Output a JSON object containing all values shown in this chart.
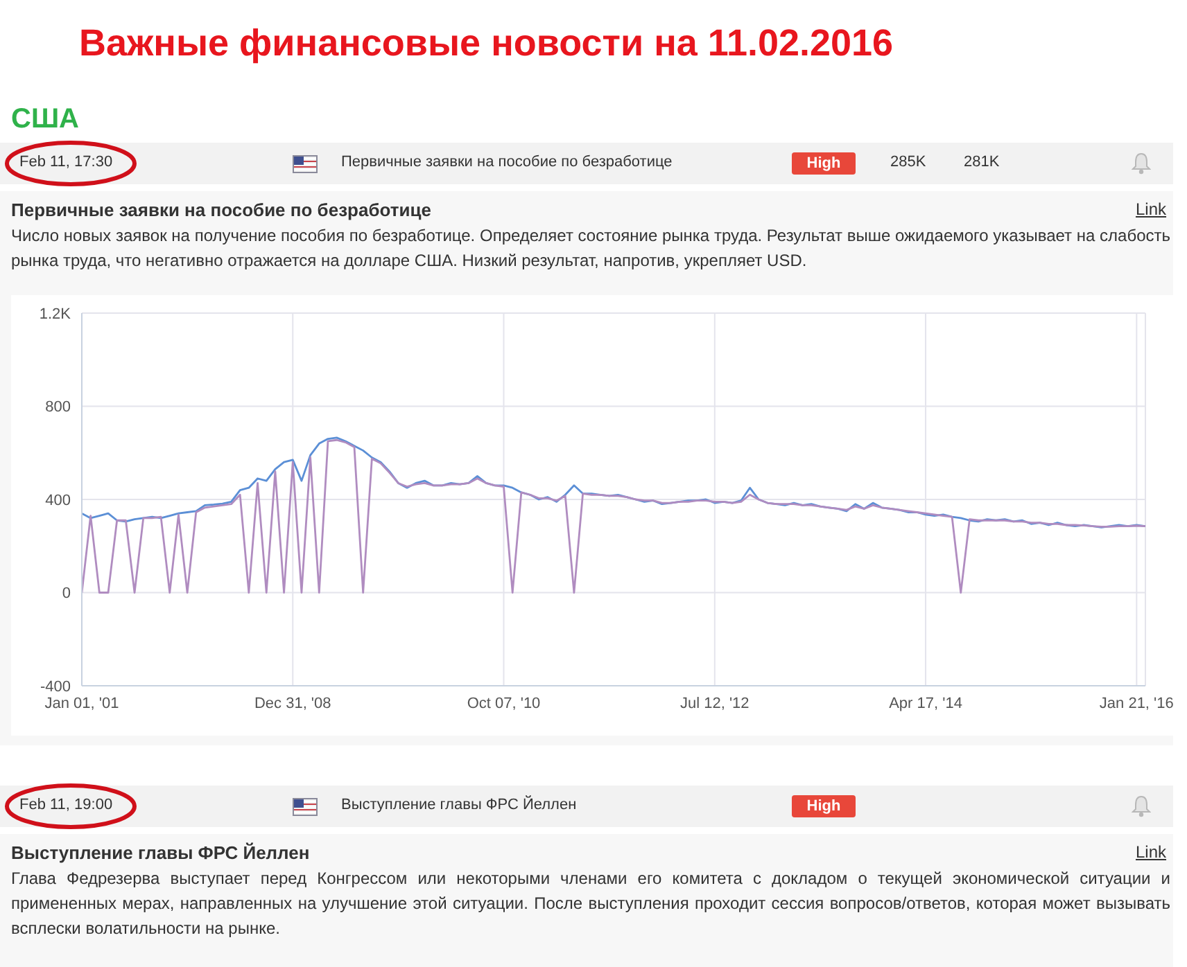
{
  "chart_data": {
    "type": "line",
    "title": "Важные финансовые новости на 11.02.2016",
    "annotations": [
      "США",
      "Feb 11, 17:30",
      "Первичные заявки на пособие по безработице",
      "High",
      "285K",
      "281K",
      "Первичные заявки на пособие по безработице",
      "Link",
      "Число новых заявок на получение пособия по безработице. Определяет состояние рынка труда. Результат выше ожидаемого указывает на слабость рынка труда, что негативно отражается на долларе США. Низкий результат, напротив, укрепляет USD.",
      "Feb 11, 19:00",
      "Выступление главы ФРС Йеллен",
      "High",
      "Выступление главы ФРС Йеллен",
      "Link",
      "Глава Федрезерва выступает перед Конгрессом или некоторыми членами его комитета с докладом о текущей экономической ситуации и примененных мерах, направленных на улучшение этой ситуации. После выступления проходит сессия вопросов/ответов, которая может вызывать всплески волатильности на рынке."
    ],
    "categories": [
      "Jan 01, '01",
      null,
      null,
      null,
      null,
      null,
      null,
      null,
      null,
      null,
      null,
      null,
      null,
      null,
      null,
      null,
      null,
      null,
      null,
      null,
      null,
      null,
      null,
      null,
      "Dec 31, '08",
      null,
      null,
      null,
      null,
      null,
      null,
      null,
      null,
      null,
      null,
      null,
      null,
      null,
      null,
      null,
      null,
      null,
      null,
      null,
      null,
      null,
      null,
      null,
      "Oct 07, '10",
      null,
      null,
      null,
      null,
      null,
      null,
      null,
      null,
      null,
      null,
      null,
      null,
      null,
      null,
      null,
      null,
      null,
      null,
      null,
      null,
      null,
      null,
      null,
      "Jul 12, '12",
      null,
      null,
      null,
      null,
      null,
      null,
      null,
      null,
      null,
      null,
      null,
      null,
      null,
      null,
      null,
      null,
      null,
      null,
      null,
      null,
      null,
      null,
      null,
      "Apr 17, '14",
      null,
      null,
      null,
      null,
      null,
      null,
      null,
      null,
      null,
      null,
      null,
      null,
      null,
      null,
      null,
      null,
      null,
      null,
      null,
      null,
      null,
      null,
      null,
      "Jan 21, '16",
      null
    ],
    "series": [
      {
        "color": "#5b8fd6",
        "values": [
          340,
          320,
          330,
          340,
          310,
          305,
          315,
          320,
          325,
          320,
          330,
          340,
          345,
          350,
          375,
          378,
          382,
          390,
          440,
          450,
          490,
          480,
          530,
          560,
          570,
          480,
          590,
          640,
          660,
          665,
          650,
          630,
          610,
          580,
          560,
          520,
          470,
          450,
          470,
          480,
          460,
          460,
          470,
          465,
          470,
          500,
          470,
          460,
          460,
          450,
          430,
          420,
          400,
          410,
          390,
          420,
          460,
          425,
          425,
          420,
          415,
          420,
          410,
          400,
          390,
          395,
          380,
          385,
          390,
          395,
          395,
          400,
          385,
          390,
          385,
          395,
          450,
          400,
          385,
          380,
          375,
          385,
          375,
          380,
          370,
          365,
          360,
          350,
          380,
          360,
          385,
          365,
          360,
          355,
          345,
          345,
          335,
          330,
          335,
          325,
          320,
          310,
          305,
          315,
          310,
          315,
          305,
          310,
          295,
          300,
          290,
          300,
          290,
          285,
          290,
          285,
          280,
          285,
          290,
          285,
          290,
          285
        ]
      },
      {
        "color": "#b08cc0",
        "values": [
          0,
          330,
          0,
          0,
          310,
          310,
          0,
          320,
          320,
          325,
          0,
          335,
          0,
          345,
          365,
          370,
          375,
          380,
          420,
          0,
          470,
          0,
          520,
          0,
          560,
          0,
          580,
          0,
          650,
          655,
          645,
          625,
          0,
          575,
          555,
          515,
          470,
          455,
          465,
          470,
          460,
          460,
          465,
          465,
          470,
          490,
          470,
          460,
          455,
          0,
          430,
          420,
          405,
          405,
          395,
          415,
          0,
          425,
          420,
          420,
          415,
          415,
          410,
          400,
          395,
          395,
          385,
          385,
          390,
          390,
          395,
          395,
          390,
          390,
          385,
          390,
          420,
          400,
          385,
          380,
          380,
          380,
          375,
          375,
          370,
          365,
          360,
          355,
          370,
          360,
          375,
          365,
          360,
          355,
          350,
          345,
          340,
          335,
          330,
          325,
          0,
          315,
          310,
          310,
          310,
          310,
          305,
          305,
          300,
          300,
          295,
          295,
          290,
          290,
          288,
          285,
          283,
          283,
          285,
          285,
          287,
          285
        ]
      }
    ],
    "ylim": [
      -400,
      1200
    ],
    "yticks": [
      -400,
      0,
      400,
      800,
      {
        "value": 1200,
        "label": "1.2K"
      }
    ],
    "grid": true,
    "marker": "none"
  }
}
